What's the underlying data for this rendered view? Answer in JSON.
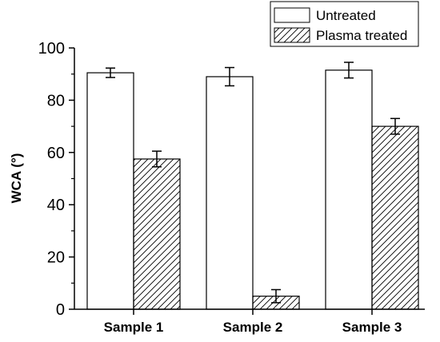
{
  "chart_data": {
    "type": "bar",
    "title": "",
    "xlabel": "",
    "ylabel": "WCA (°)",
    "ylim": [
      0,
      100
    ],
    "yticks": [
      0,
      20,
      40,
      60,
      80,
      100
    ],
    "grid": false,
    "legend_position": "top-right",
    "categories": [
      "Sample 1",
      "Sample 2",
      "Sample 3"
    ],
    "series": [
      {
        "name": "Untreated",
        "values": [
          90.5,
          89.0,
          91.5
        ],
        "errors": [
          1.8,
          3.5,
          3.0
        ],
        "fill": "#ffffff",
        "pattern": "none"
      },
      {
        "name": "Plasma treated",
        "values": [
          57.5,
          5.0,
          70.0
        ],
        "errors": [
          3.0,
          2.5,
          3.0
        ],
        "fill": "#ffffff",
        "pattern": "diagonal-hatch"
      }
    ]
  }
}
